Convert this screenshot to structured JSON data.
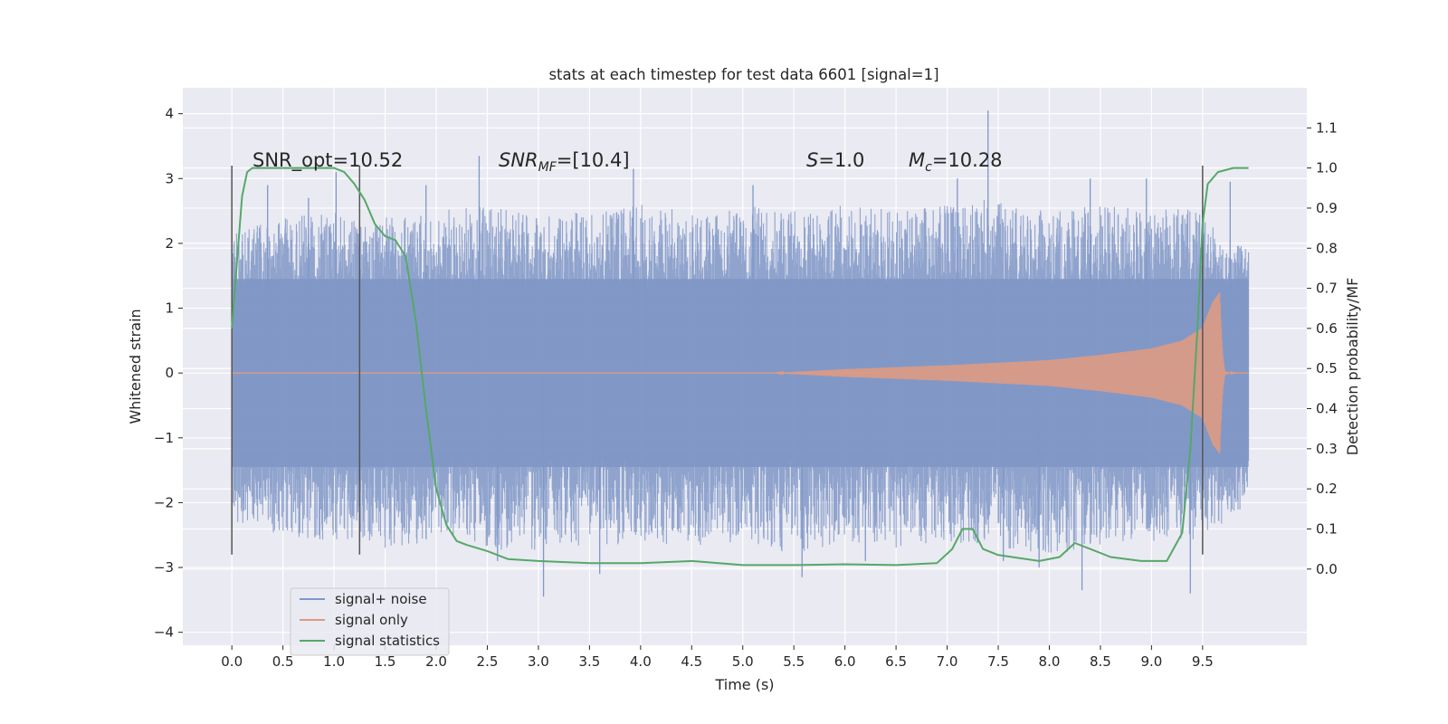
{
  "chart_data": {
    "type": "line",
    "title": "stats at each timestep for test data 6601 [signal=1]",
    "xlabel": "Time (s)",
    "ylabel": "Whitened strain",
    "y2label": "Detection probability/MF",
    "xlim": [
      -0.48,
      10.52
    ],
    "ylim": [
      -4.2,
      4.4
    ],
    "y2lim": [
      -0.19,
      1.2
    ],
    "xticks": [
      "0.0",
      "0.5",
      "1.0",
      "1.5",
      "2.0",
      "2.5",
      "3.0",
      "3.5",
      "4.0",
      "4.5",
      "5.0",
      "5.5",
      "6.0",
      "6.5",
      "7.0",
      "7.5",
      "8.0",
      "8.5",
      "9.0",
      "9.5"
    ],
    "yticks": [
      "4",
      "3",
      "2",
      "1",
      "0",
      "−1",
      "−2",
      "−3",
      "−4"
    ],
    "y2ticks": [
      "0.0",
      "0.1",
      "0.2",
      "0.3",
      "0.4",
      "0.5",
      "0.6",
      "0.7",
      "0.8",
      "0.9",
      "1.0",
      "1.1"
    ],
    "grid": true,
    "legend_position": "lower-left",
    "annotations": {
      "snr_opt": "SNR_opt=10.52",
      "snr_mf_main": "SNR",
      "snr_mf_sub": "MF",
      "snr_mf_value": "=[10.4]",
      "s_main": "S",
      "s_value": "=1.0",
      "mc_main": "M",
      "mc_sub": "c",
      "mc_value": "=10.28"
    },
    "vlines_x": [
      0.0,
      1.25,
      9.5
    ],
    "series": [
      {
        "name": "signal+ noise",
        "color": "#7f97c7",
        "axis": "left",
        "band_lower_envelope": [
          [
            0.0,
            -2.3
          ],
          [
            0.5,
            -2.5
          ],
          [
            1.0,
            -2.6
          ],
          [
            1.5,
            -2.7
          ],
          [
            2.0,
            -2.6
          ],
          [
            2.5,
            -2.7
          ],
          [
            3.0,
            -2.8
          ],
          [
            3.5,
            -2.7
          ],
          [
            4.0,
            -2.6
          ],
          [
            4.5,
            -2.7
          ],
          [
            5.0,
            -2.6
          ],
          [
            5.5,
            -2.8
          ],
          [
            6.0,
            -2.6
          ],
          [
            6.5,
            -2.7
          ],
          [
            7.0,
            -2.6
          ],
          [
            7.5,
            -2.7
          ],
          [
            8.0,
            -2.8
          ],
          [
            8.5,
            -2.7
          ],
          [
            9.0,
            -2.6
          ],
          [
            9.5,
            -2.6
          ],
          [
            9.95,
            -2.0
          ]
        ],
        "band_upper_envelope": [
          [
            0.0,
            2.2
          ],
          [
            0.5,
            2.4
          ],
          [
            1.0,
            2.5
          ],
          [
            1.5,
            2.4
          ],
          [
            2.0,
            2.5
          ],
          [
            2.5,
            2.6
          ],
          [
            3.0,
            2.4
          ],
          [
            3.5,
            2.5
          ],
          [
            4.0,
            2.6
          ],
          [
            4.5,
            2.5
          ],
          [
            5.0,
            2.6
          ],
          [
            5.5,
            2.5
          ],
          [
            6.0,
            2.6
          ],
          [
            6.5,
            2.5
          ],
          [
            7.0,
            2.6
          ],
          [
            7.5,
            2.7
          ],
          [
            8.0,
            2.5
          ],
          [
            8.5,
            2.6
          ],
          [
            9.0,
            2.5
          ],
          [
            9.5,
            2.6
          ],
          [
            9.95,
            1.9
          ]
        ],
        "spikes": [
          [
            0.35,
            2.9
          ],
          [
            0.75,
            2.7
          ],
          [
            1.02,
            3.1
          ],
          [
            1.9,
            2.9
          ],
          [
            2.42,
            3.35
          ],
          [
            2.6,
            -2.9
          ],
          [
            3.05,
            -3.45
          ],
          [
            3.6,
            -3.1
          ],
          [
            3.93,
            3.15
          ],
          [
            5.1,
            2.9
          ],
          [
            5.58,
            -3.15
          ],
          [
            6.2,
            -2.9
          ],
          [
            7.1,
            3.0
          ],
          [
            7.4,
            4.05
          ],
          [
            7.55,
            -2.9
          ],
          [
            7.9,
            -3.0
          ],
          [
            8.32,
            -3.35
          ],
          [
            8.4,
            3.0
          ],
          [
            8.95,
            3.0
          ],
          [
            9.38,
            -3.4
          ],
          [
            9.77,
            2.95
          ]
        ]
      },
      {
        "name": "signal only",
        "color": "#dd9a83",
        "axis": "left",
        "chirp_start": 5.3,
        "chirp_peak_time": 9.67,
        "envelope": [
          [
            5.3,
            0.0
          ],
          [
            6.0,
            0.06
          ],
          [
            7.0,
            0.12
          ],
          [
            8.0,
            0.2
          ],
          [
            8.5,
            0.28
          ],
          [
            9.0,
            0.38
          ],
          [
            9.3,
            0.5
          ],
          [
            9.5,
            0.7
          ],
          [
            9.6,
            1.1
          ],
          [
            9.67,
            1.25
          ],
          [
            9.72,
            0.1
          ]
        ]
      },
      {
        "name": "signal statistics",
        "color": "#55a868",
        "axis": "right",
        "points": [
          [
            0.0,
            0.6
          ],
          [
            0.03,
            0.7
          ],
          [
            0.06,
            0.8
          ],
          [
            0.1,
            0.93
          ],
          [
            0.15,
            0.99
          ],
          [
            0.2,
            1.0
          ],
          [
            0.3,
            1.0
          ],
          [
            0.5,
            1.0
          ],
          [
            0.7,
            1.0
          ],
          [
            0.9,
            1.0
          ],
          [
            1.0,
            1.0
          ],
          [
            1.1,
            0.99
          ],
          [
            1.2,
            0.96
          ],
          [
            1.3,
            0.92
          ],
          [
            1.4,
            0.86
          ],
          [
            1.5,
            0.83
          ],
          [
            1.6,
            0.82
          ],
          [
            1.7,
            0.78
          ],
          [
            1.8,
            0.62
          ],
          [
            1.9,
            0.4
          ],
          [
            2.0,
            0.2
          ],
          [
            2.1,
            0.11
          ],
          [
            2.2,
            0.07
          ],
          [
            2.3,
            0.06
          ],
          [
            2.5,
            0.045
          ],
          [
            2.7,
            0.025
          ],
          [
            3.0,
            0.02
          ],
          [
            3.5,
            0.015
          ],
          [
            4.0,
            0.015
          ],
          [
            4.5,
            0.02
          ],
          [
            5.0,
            0.01
          ],
          [
            5.5,
            0.01
          ],
          [
            6.0,
            0.012
          ],
          [
            6.5,
            0.01
          ],
          [
            6.9,
            0.015
          ],
          [
            7.05,
            0.05
          ],
          [
            7.15,
            0.1
          ],
          [
            7.25,
            0.1
          ],
          [
            7.35,
            0.05
          ],
          [
            7.5,
            0.035
          ],
          [
            7.9,
            0.02
          ],
          [
            8.1,
            0.03
          ],
          [
            8.25,
            0.065
          ],
          [
            8.4,
            0.05
          ],
          [
            8.6,
            0.03
          ],
          [
            8.9,
            0.02
          ],
          [
            9.15,
            0.02
          ],
          [
            9.3,
            0.09
          ],
          [
            9.38,
            0.3
          ],
          [
            9.45,
            0.6
          ],
          [
            9.5,
            0.86
          ],
          [
            9.55,
            0.96
          ],
          [
            9.65,
            0.99
          ],
          [
            9.8,
            1.0
          ],
          [
            9.95,
            1.0
          ]
        ]
      }
    ]
  }
}
